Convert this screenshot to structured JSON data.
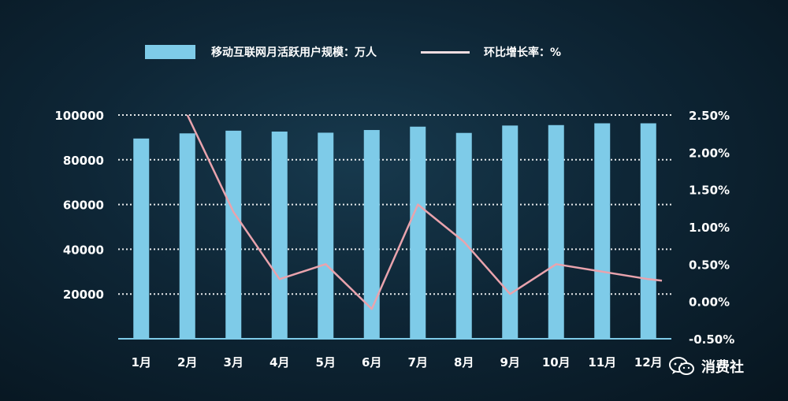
{
  "chart_data": {
    "type": "bar",
    "categories": [
      "1月",
      "2月",
      "3月",
      "4月",
      "5月",
      "6月",
      "7月",
      "8月",
      "9月",
      "10月",
      "11月",
      "12月"
    ],
    "series": [
      {
        "name": "移动互联网月活跃用户规模：万人",
        "type": "bar",
        "axis": "left",
        "values": [
          89500,
          91800,
          93000,
          92600,
          92100,
          93300,
          94800,
          92000,
          95300,
          95500,
          96300,
          96300
        ]
      },
      {
        "name": "环比增长率：%",
        "type": "line",
        "axis": "right",
        "values": [
          null,
          2.5,
          1.2,
          0.3,
          0.5,
          -0.1,
          1.3,
          0.8,
          0.1,
          0.5,
          0.4,
          0.3
        ]
      }
    ],
    "y_left": {
      "ticks": [
        "100000",
        "80000",
        "60000",
        "40000",
        "20000"
      ],
      "tick_values": [
        100000,
        80000,
        60000,
        40000,
        20000
      ],
      "ylim": [
        0,
        100000
      ]
    },
    "y_right": {
      "ticks": [
        "2.50%",
        "2.00%",
        "1.50%",
        "1.00%",
        "0.50%",
        "0.00%",
        "-0.50%"
      ],
      "tick_values": [
        2.5,
        2.0,
        1.5,
        1.0,
        0.5,
        0.0,
        -0.5
      ],
      "ylim": [
        -0.5,
        2.5
      ]
    },
    "grid": "dotted horizontal",
    "legend_position": "top",
    "colors": {
      "bar": "#7ecbe8",
      "line": "#e9a3ad",
      "legend_line": "#f2dde1"
    }
  },
  "watermark": {
    "text": "消费社",
    "icon": "wechat-icon"
  }
}
